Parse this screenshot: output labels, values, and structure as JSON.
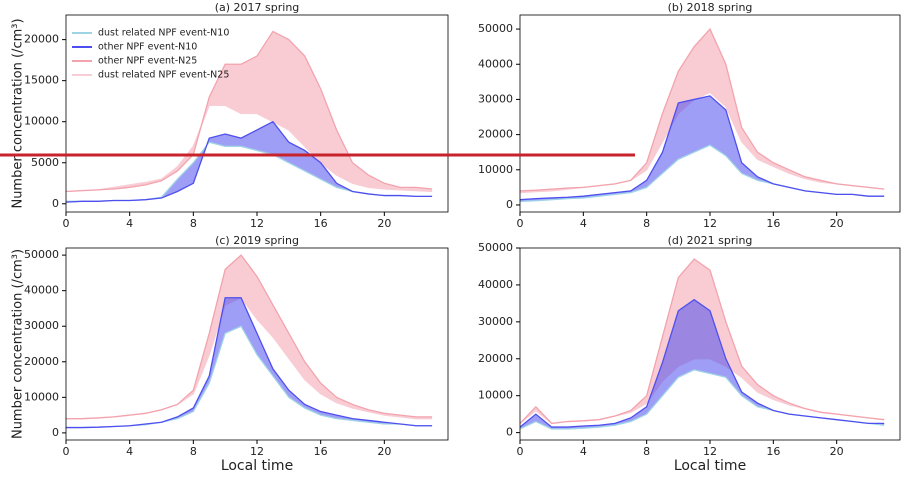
{
  "chart_data": [
    {
      "type": "line",
      "title": "(a) 2017 spring",
      "ylabel": "Number concentration (/cm³)",
      "legend": "upper left",
      "x": [
        0,
        1,
        2,
        3,
        4,
        5,
        6,
        7,
        8,
        9,
        10,
        11,
        12,
        13,
        14,
        15,
        16,
        17,
        18,
        19,
        20,
        21,
        22,
        23
      ],
      "xlim": [
        0,
        24
      ],
      "xticks": [
        0,
        4,
        8,
        12,
        16,
        20
      ],
      "ylim": [
        -1000,
        23000
      ],
      "yticks": [
        0,
        5000,
        10000,
        15000,
        20000
      ],
      "series": [
        {
          "name": "dust related NPF event-N10",
          "color": "#9fd3e6",
          "values": [
            300,
            300,
            300,
            400,
            400,
            500,
            800,
            3000,
            5000,
            7500,
            7000,
            7000,
            6500,
            6000,
            5000,
            4000,
            3000,
            2000,
            1500,
            1200,
            1000,
            1000,
            900,
            900
          ]
        },
        {
          "name": "other NPF event-N10",
          "color": "#4f4fef",
          "values": [
            200,
            300,
            300,
            400,
            400,
            500,
            700,
            1500,
            2500,
            8000,
            8500,
            8000,
            9000,
            10000,
            7500,
            6500,
            5000,
            2500,
            1500,
            1200,
            1000,
            1000,
            900,
            900
          ]
        },
        {
          "name": "other NPF event-N25",
          "color": "#f3a3ad",
          "values": [
            1500,
            1600,
            1700,
            1800,
            2000,
            2300,
            2800,
            4000,
            6000,
            13000,
            17000,
            17000,
            18000,
            21000,
            20000,
            18000,
            14000,
            9000,
            5000,
            3500,
            2500,
            2000,
            2000,
            1800
          ]
        },
        {
          "name": "dust related NPF event-N25",
          "color": "#f9cdd6",
          "values": [
            1500,
            1600,
            1700,
            2000,
            2300,
            2600,
            3000,
            4500,
            7000,
            12000,
            12000,
            11000,
            11000,
            10000,
            9000,
            7000,
            5000,
            3500,
            2500,
            2000,
            1800,
            1700,
            1600,
            1500
          ]
        }
      ]
    },
    {
      "type": "line",
      "title": "(b) 2018 spring",
      "x": [
        0,
        1,
        2,
        3,
        4,
        5,
        6,
        7,
        8,
        9,
        10,
        11,
        12,
        13,
        14,
        15,
        16,
        17,
        18,
        19,
        20,
        21,
        22,
        23
      ],
      "xlim": [
        0,
        24
      ],
      "xticks": [
        0,
        4,
        8,
        12,
        16,
        20
      ],
      "ylim": [
        -2000,
        54000
      ],
      "yticks": [
        0,
        10000,
        20000,
        30000,
        40000,
        50000
      ],
      "series": [
        {
          "color": "#9fd3e6",
          "values": [
            1000,
            1200,
            1500,
            1800,
            2000,
            2500,
            3000,
            3500,
            5000,
            9000,
            13000,
            15000,
            17000,
            14000,
            9000,
            7000,
            6000,
            5000,
            4000,
            3500,
            3000,
            3000,
            2500,
            2500
          ]
        },
        {
          "color": "#4f4fef",
          "values": [
            1500,
            1800,
            2000,
            2200,
            2500,
            3000,
            3500,
            4000,
            7000,
            15000,
            29000,
            30000,
            31000,
            27000,
            12000,
            8000,
            6000,
            5000,
            4000,
            3500,
            3000,
            3000,
            2500,
            2500
          ]
        },
        {
          "color": "#f3a3ad",
          "values": [
            4000,
            4200,
            4500,
            4800,
            5000,
            5500,
            6000,
            7000,
            12000,
            26000,
            38000,
            45000,
            50000,
            40000,
            22000,
            15000,
            12000,
            10000,
            8000,
            7000,
            6000,
            5500,
            5000,
            4500
          ]
        },
        {
          "color": "#f9cdd6",
          "values": [
            3500,
            3800,
            4000,
            4500,
            5000,
            5500,
            6000,
            7000,
            10000,
            18000,
            26000,
            30000,
            32000,
            28000,
            18000,
            13000,
            11000,
            9000,
            7500,
            6500,
            6000,
            5500,
            5000,
            4500
          ]
        }
      ]
    },
    {
      "type": "line",
      "title": "(c) 2019 spring",
      "ylabel": "Number concentration (/cm³)",
      "xlabel": "Local time",
      "x": [
        0,
        1,
        2,
        3,
        4,
        5,
        6,
        7,
        8,
        9,
        10,
        11,
        12,
        13,
        14,
        15,
        16,
        17,
        18,
        19,
        20,
        21,
        22,
        23
      ],
      "xlim": [
        0,
        24
      ],
      "xticks": [
        0,
        4,
        8,
        12,
        16,
        20
      ],
      "ylim": [
        -2000,
        52000
      ],
      "yticks": [
        0,
        10000,
        20000,
        30000,
        40000,
        50000
      ],
      "series": [
        {
          "color": "#9fd3e6",
          "values": [
            1500,
            1500,
            1600,
            1800,
            2000,
            2300,
            3000,
            4000,
            6000,
            14000,
            28000,
            30000,
            22000,
            16000,
            10000,
            7000,
            5000,
            4000,
            3500,
            3000,
            2500,
            2500,
            2000,
            2000
          ]
        },
        {
          "color": "#4f4fef",
          "values": [
            1500,
            1500,
            1600,
            1800,
            2000,
            2500,
            3000,
            4500,
            7000,
            16000,
            38000,
            38000,
            28000,
            18000,
            12000,
            8000,
            6000,
            5000,
            4000,
            3500,
            3000,
            2500,
            2000,
            2000
          ]
        },
        {
          "color": "#f3a3ad",
          "values": [
            4000,
            4000,
            4200,
            4500,
            5000,
            5500,
            6500,
            8000,
            12000,
            28000,
            46000,
            50000,
            44000,
            36000,
            28000,
            20000,
            14000,
            10000,
            8000,
            6500,
            5500,
            5000,
            4500,
            4500
          ]
        },
        {
          "color": "#f9cdd6",
          "values": [
            4000,
            4000,
            4200,
            4500,
            5000,
            5500,
            6500,
            8000,
            11000,
            22000,
            36000,
            38000,
            32000,
            27000,
            21000,
            15000,
            11000,
            8500,
            7000,
            6000,
            5000,
            4500,
            4000,
            4000
          ]
        }
      ]
    },
    {
      "type": "line",
      "title": "(d) 2021 spring",
      "xlabel": "Local time",
      "x": [
        0,
        1,
        2,
        3,
        4,
        5,
        6,
        7,
        8,
        9,
        10,
        11,
        12,
        13,
        14,
        15,
        16,
        17,
        18,
        19,
        20,
        21,
        22,
        23
      ],
      "xlim": [
        0,
        24
      ],
      "xticks": [
        0,
        4,
        8,
        12,
        16,
        20
      ],
      "ylim": [
        -2000,
        50000
      ],
      "yticks": [
        0,
        10000,
        20000,
        30000,
        40000,
        50000
      ],
      "series": [
        {
          "color": "#9fd3e6",
          "values": [
            1000,
            3000,
            1000,
            1000,
            1200,
            1500,
            2000,
            3000,
            5000,
            10000,
            15000,
            17000,
            16000,
            15000,
            10000,
            7000,
            6000,
            5000,
            4500,
            4000,
            3500,
            3000,
            2500,
            2000
          ]
        },
        {
          "color": "#4f4fef",
          "values": [
            1500,
            5000,
            1500,
            1500,
            1800,
            2000,
            2500,
            4000,
            7000,
            19000,
            33000,
            36000,
            33000,
            20000,
            11000,
            8000,
            6000,
            5000,
            4500,
            4000,
            3500,
            3000,
            2500,
            2500
          ]
        },
        {
          "color": "#f3a3ad",
          "values": [
            2500,
            7000,
            2500,
            3000,
            3200,
            3500,
            4500,
            6000,
            10000,
            26000,
            42000,
            47000,
            44000,
            30000,
            18000,
            13000,
            10000,
            8000,
            6500,
            5500,
            5000,
            4500,
            4000,
            3500
          ]
        },
        {
          "color": "#f9cdd6",
          "values": [
            2500,
            6000,
            2500,
            3000,
            3200,
            3500,
            4500,
            5500,
            8000,
            14000,
            18000,
            20000,
            20000,
            18000,
            15000,
            11000,
            9000,
            7500,
            6500,
            5500,
            5000,
            4500,
            4000,
            3500
          ]
        }
      ]
    }
  ]
}
